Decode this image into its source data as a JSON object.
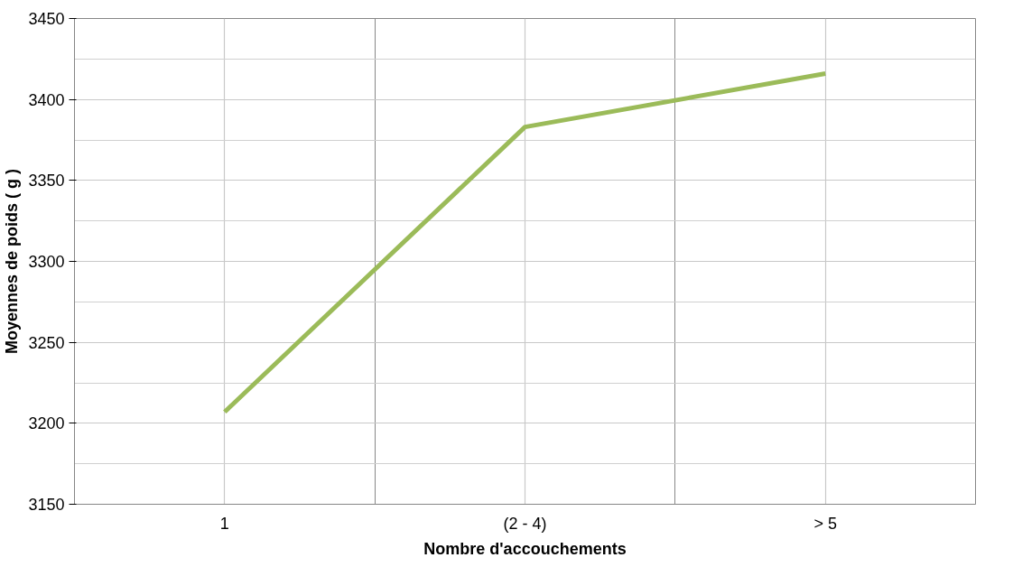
{
  "chart_data": {
    "type": "line",
    "xlabel": "Nombre d'accouchements",
    "ylabel": "Moyennes de poids ( g )",
    "categories": [
      "1",
      "(2 - 4)",
      "> 5"
    ],
    "series": [
      {
        "color": "#9bbb59",
        "values": [
          3207,
          3383,
          3416
        ]
      }
    ],
    "ylim": [
      3150,
      3450
    ],
    "yticks": [
      3150,
      3200,
      3250,
      3300,
      3350,
      3400,
      3450
    ],
    "grid": true,
    "marker": "none",
    "line_style": "solid"
  }
}
